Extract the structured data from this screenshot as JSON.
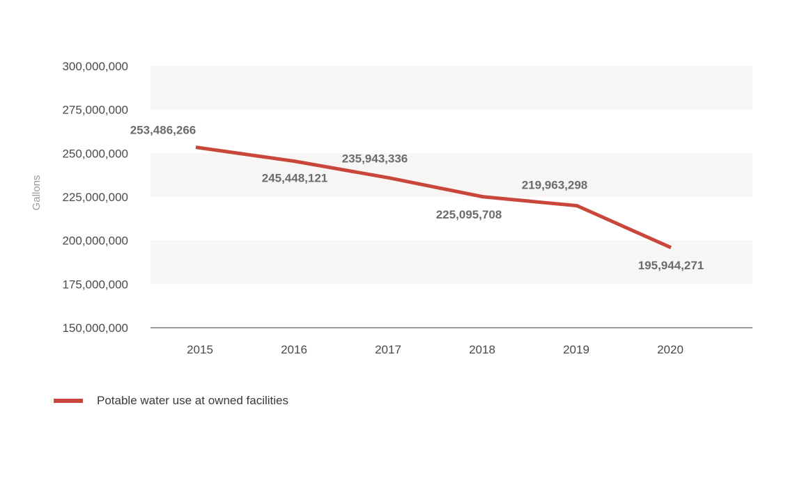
{
  "chart_data": {
    "type": "line",
    "title": "",
    "xlabel": "",
    "ylabel": "Gallons",
    "categories": [
      "2015",
      "2016",
      "2017",
      "2018",
      "2019",
      "2020"
    ],
    "series": [
      {
        "name": "Potable water use at owned facilities",
        "color": "#c8473a",
        "values": [
          253486266,
          245448121,
          235943336,
          225095708,
          219963298,
          195944271
        ],
        "labels": [
          "253,486,266",
          "245,448,121",
          "235,943,336",
          "225,095,708",
          "219,963,298",
          "195,944,271"
        ]
      }
    ],
    "ylim": [
      150000000,
      300000000
    ],
    "yticks": [
      150000000,
      175000000,
      200000000,
      225000000,
      250000000,
      275000000,
      300000000
    ],
    "ytick_labels": [
      "150,000,000",
      "175,000,000",
      "200,000,000",
      "225,000,000",
      "250,000,000",
      "275,000,000",
      "300,000,000"
    ],
    "grid": "alternating horizontal bands",
    "band_color": "#f7f6f5",
    "axis_color": "#7a7a7a",
    "legend_position": "bottom-left"
  }
}
